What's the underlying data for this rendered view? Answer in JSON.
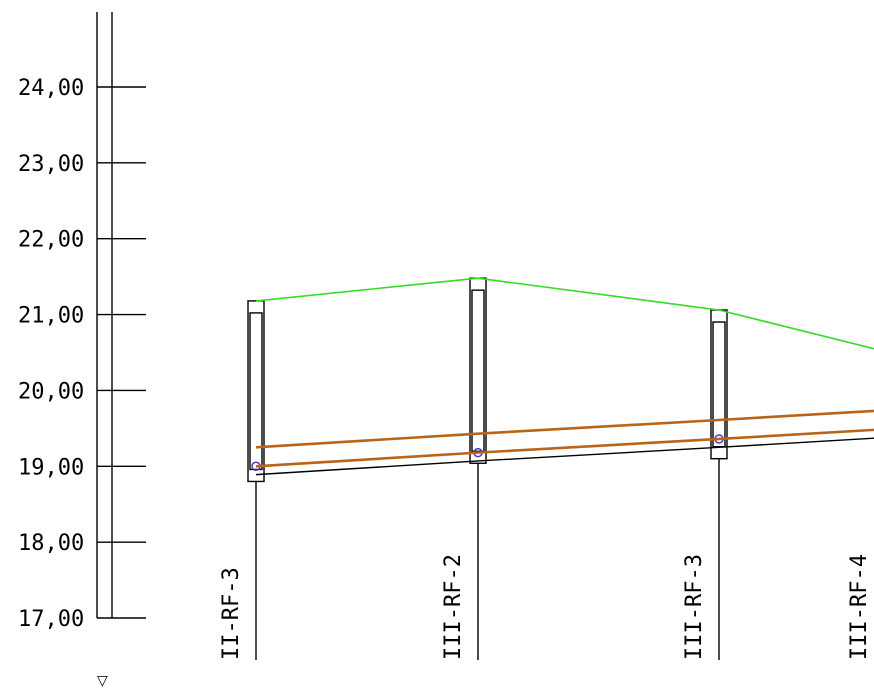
{
  "profile": {
    "axis": {
      "ticks": [
        "24,00",
        "23,00",
        "22,00",
        "21,00",
        "20,00",
        "19,00",
        "18,00",
        "17,00"
      ],
      "tick_values": [
        24,
        23,
        22,
        21,
        20,
        19,
        18,
        17
      ],
      "marker_symbol": "▽"
    },
    "manholes": [
      {
        "label": "II-RF-3",
        "terrain": 21.18,
        "invert": 19.0,
        "shaft_top": 21.18,
        "shaft_bottom": 18.8
      },
      {
        "label": "III-RF-2",
        "terrain": 21.48,
        "invert": 19.18,
        "shaft_top": 21.48,
        "shaft_bottom": 19.04
      },
      {
        "label": "III-RF-3",
        "terrain": 21.06,
        "invert": 19.36,
        "shaft_top": 21.06,
        "shaft_bottom": 19.1
      },
      {
        "label": "III-RF-4",
        "terrain": 20.55,
        "invert": 19.48,
        "shaft_top": null,
        "shaft_bottom": null
      }
    ],
    "colors": {
      "terrain": "#33dd22",
      "pipe": "#b8651a",
      "invert_line": "#000000",
      "node_point": "#5533cc"
    }
  }
}
